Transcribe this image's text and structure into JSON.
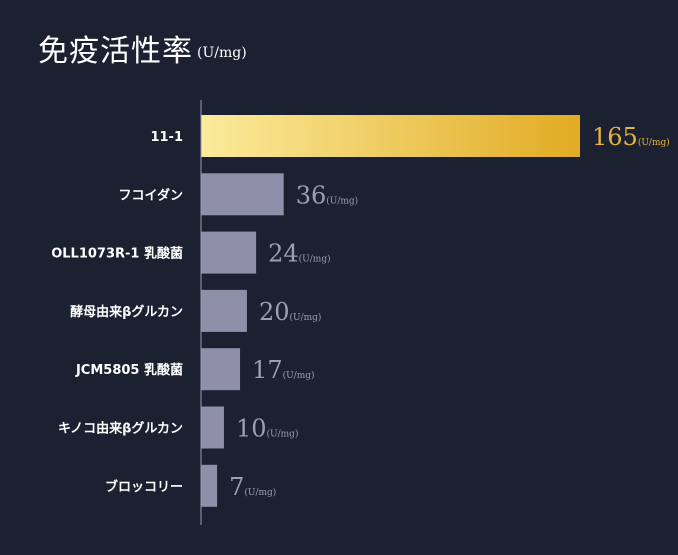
{
  "title": "免疫活性率",
  "title_unit": "(U/mg)",
  "colors": {
    "background": "#1c2132",
    "highlight_bar_start": "#fbeb9c",
    "highlight_bar_end": "#e2ab23",
    "highlight_value": "#e6b43c",
    "bar": "#8e90aa",
    "value": "#9c9eb2",
    "axis": "#9a9cb0"
  },
  "chart_data": {
    "type": "bar",
    "orientation": "horizontal",
    "title": "免疫活性率",
    "unit": "(U/mg)",
    "value_unit_label": "(U/mg)",
    "categories": [
      "11-1",
      "フコイダン",
      "OLL1073R-1 乳酸菌",
      "酵母由来βグルカン",
      "JCM5805 乳酸菌",
      "キノコ由来βグルカン",
      "ブロッコリー"
    ],
    "values": [
      165,
      36,
      24,
      20,
      17,
      10,
      7
    ],
    "value_labels": [
      "165",
      "36",
      "24",
      "20",
      "17",
      "10",
      "7"
    ],
    "highlight_index": 0,
    "xlim": [
      0,
      165
    ],
    "grid": false,
    "legend": "none"
  }
}
